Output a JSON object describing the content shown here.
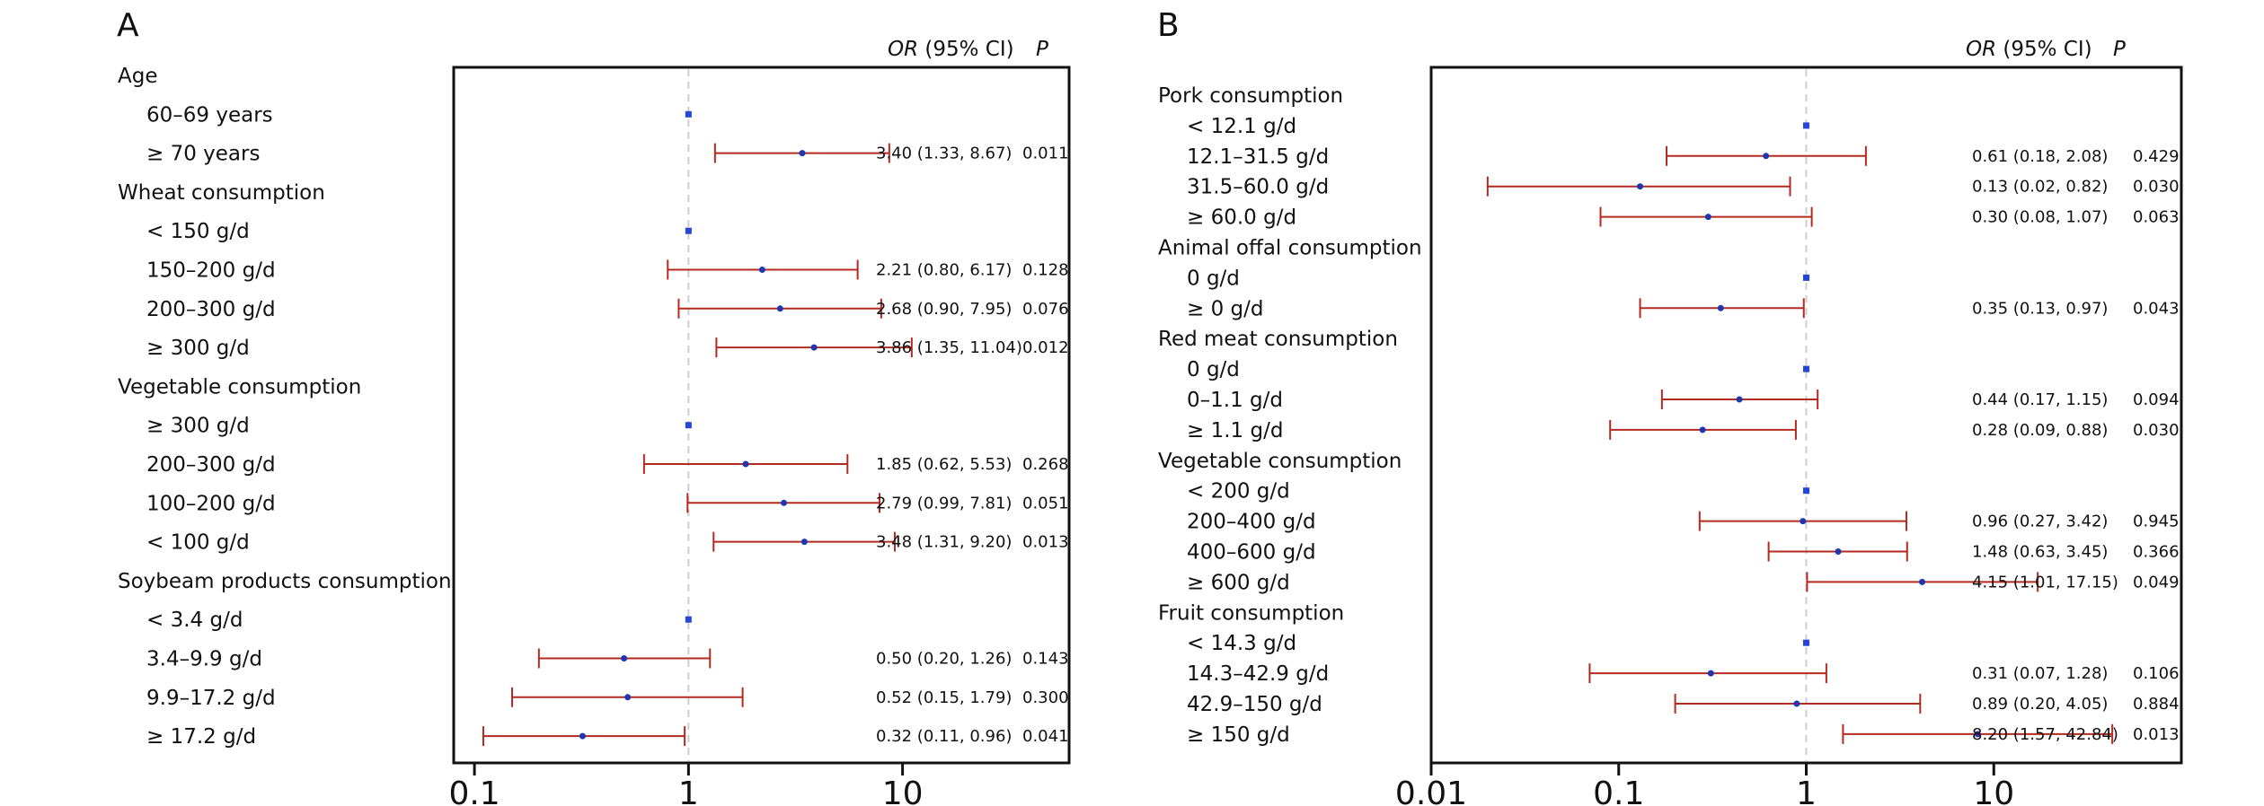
{
  "chart_data": [
    {
      "type": "forest",
      "panel": "A",
      "header": {
        "or": "OR",
        "ci": "(95% CI)",
        "p": "P"
      },
      "x_scale": "log",
      "xlim": [
        0.08,
        60
      ],
      "xticks": [
        0.1,
        1,
        10
      ],
      "xtick_labels": [
        "0.1",
        "1",
        "10"
      ],
      "reference_line": 1,
      "rows": [
        {
          "label": "Age",
          "group": true
        },
        {
          "label": "60–69 years",
          "ref": true,
          "or": 1
        },
        {
          "label": "≥ 70 years",
          "or": 3.4,
          "lo": 1.33,
          "hi": 8.67,
          "text": "3.40 (1.33, 8.67)",
          "p": "0.011"
        },
        {
          "label": "Wheat consumption",
          "group": true
        },
        {
          "label": "< 150 g/d",
          "ref": true,
          "or": 1
        },
        {
          "label": "150–200 g/d",
          "or": 2.21,
          "lo": 0.8,
          "hi": 6.17,
          "text": "2.21 (0.80, 6.17)",
          "p": "0.128"
        },
        {
          "label": "200–300 g/d",
          "or": 2.68,
          "lo": 0.9,
          "hi": 7.95,
          "text": "2.68 (0.90, 7.95)",
          "p": "0.076"
        },
        {
          "label": "≥ 300 g/d",
          "or": 3.86,
          "lo": 1.35,
          "hi": 11.04,
          "text": "3.86 (1.35, 11.04)",
          "p": "0.012"
        },
        {
          "label": "Vegetable consumption",
          "group": true
        },
        {
          "label": "≥ 300 g/d",
          "ref": true,
          "or": 1
        },
        {
          "label": "200–300 g/d",
          "or": 1.85,
          "lo": 0.62,
          "hi": 5.53,
          "text": "1.85 (0.62, 5.53)",
          "p": "0.268"
        },
        {
          "label": "100–200 g/d",
          "or": 2.79,
          "lo": 0.99,
          "hi": 7.81,
          "text": "2.79 (0.99, 7.81)",
          "p": "0.051"
        },
        {
          "label": "< 100 g/d",
          "or": 3.48,
          "lo": 1.31,
          "hi": 9.2,
          "text": "3.48 (1.31, 9.20)",
          "p": "0.013"
        },
        {
          "label": "Soybeam products consumption",
          "group": true
        },
        {
          "label": "< 3.4 g/d",
          "ref": true,
          "or": 1
        },
        {
          "label": "3.4–9.9 g/d",
          "or": 0.5,
          "lo": 0.2,
          "hi": 1.26,
          "text": "0.50 (0.20, 1.26)",
          "p": "0.143"
        },
        {
          "label": "9.9–17.2 g/d",
          "or": 0.52,
          "lo": 0.15,
          "hi": 1.79,
          "text": "0.52 (0.15, 1.79)",
          "p": "0.300"
        },
        {
          "label": "≥ 17.2 g/d",
          "or": 0.32,
          "lo": 0.11,
          "hi": 0.96,
          "text": "0.32 (0.11, 0.96)",
          "p": "0.041"
        }
      ]
    },
    {
      "type": "forest",
      "panel": "B",
      "header": {
        "or": "OR",
        "ci": "(95% CI)",
        "p": "P"
      },
      "x_scale": "log",
      "xlim": [
        0.01,
        100
      ],
      "xticks": [
        0.01,
        0.1,
        1,
        10
      ],
      "xtick_labels": [
        "0.01",
        "0.1",
        "1",
        "10"
      ],
      "reference_line": 1,
      "rows": [
        {
          "label": "Pork consumption",
          "group": true
        },
        {
          "label": "< 12.1 g/d",
          "ref": true,
          "or": 1
        },
        {
          "label": "12.1–31.5 g/d",
          "or": 0.61,
          "lo": 0.18,
          "hi": 2.08,
          "text": "0.61 (0.18, 2.08)",
          "p": "0.429"
        },
        {
          "label": "31.5–60.0 g/d",
          "or": 0.13,
          "lo": 0.02,
          "hi": 0.82,
          "text": "0.13 (0.02, 0.82)",
          "p": "0.030"
        },
        {
          "label": "≥ 60.0 g/d",
          "or": 0.3,
          "lo": 0.08,
          "hi": 1.07,
          "text": "0.30 (0.08, 1.07)",
          "p": "0.063"
        },
        {
          "label": "Animal offal consumption",
          "group": true
        },
        {
          "label": "0 g/d",
          "ref": true,
          "or": 1
        },
        {
          "label": "≥ 0 g/d",
          "or": 0.35,
          "lo": 0.13,
          "hi": 0.97,
          "text": "0.35 (0.13, 0.97)",
          "p": "0.043"
        },
        {
          "label": "Red meat consumption",
          "group": true
        },
        {
          "label": "0 g/d",
          "ref": true,
          "or": 1
        },
        {
          "label": "0–1.1 g/d",
          "or": 0.44,
          "lo": 0.17,
          "hi": 1.15,
          "text": "0.44 (0.17, 1.15)",
          "p": "0.094"
        },
        {
          "label": "≥ 1.1 g/d",
          "or": 0.28,
          "lo": 0.09,
          "hi": 0.88,
          "text": "0.28 (0.09, 0.88)",
          "p": "0.030"
        },
        {
          "label": "Vegetable consumption",
          "group": true
        },
        {
          "label": "< 200 g/d",
          "ref": true,
          "or": 1
        },
        {
          "label": "200–400 g/d",
          "or": 0.96,
          "lo": 0.27,
          "hi": 3.42,
          "text": "0.96 (0.27, 3.42)",
          "p": "0.945"
        },
        {
          "label": "400–600 g/d",
          "or": 1.48,
          "lo": 0.63,
          "hi": 3.45,
          "text": "1.48 (0.63, 3.45)",
          "p": "0.366"
        },
        {
          "label": "≥ 600 g/d",
          "or": 4.15,
          "lo": 1.01,
          "hi": 17.15,
          "text": "4.15 (1.01, 17.15)",
          "p": "0.049"
        },
        {
          "label": "Fruit consumption",
          "group": true
        },
        {
          "label": "< 14.3 g/d",
          "ref": true,
          "or": 1
        },
        {
          "label": "14.3–42.9 g/d",
          "or": 0.31,
          "lo": 0.07,
          "hi": 1.28,
          "text": "0.31 (0.07, 1.28)",
          "p": "0.106"
        },
        {
          "label": "42.9–150 g/d",
          "or": 0.89,
          "lo": 0.2,
          "hi": 4.05,
          "text": "0.89 (0.20, 4.05)",
          "p": "0.884"
        },
        {
          "label": "≥ 150 g/d",
          "or": 8.2,
          "lo": 1.57,
          "hi": 42.84,
          "text": "8.20 (1.57, 42.84)",
          "p": "0.013"
        }
      ]
    }
  ],
  "colors": {
    "ci_line": "#b52a1f",
    "point": "#1f36b0",
    "ref_point": "#2646d6",
    "ref_line": "#cccccc",
    "frame": "#111111"
  }
}
